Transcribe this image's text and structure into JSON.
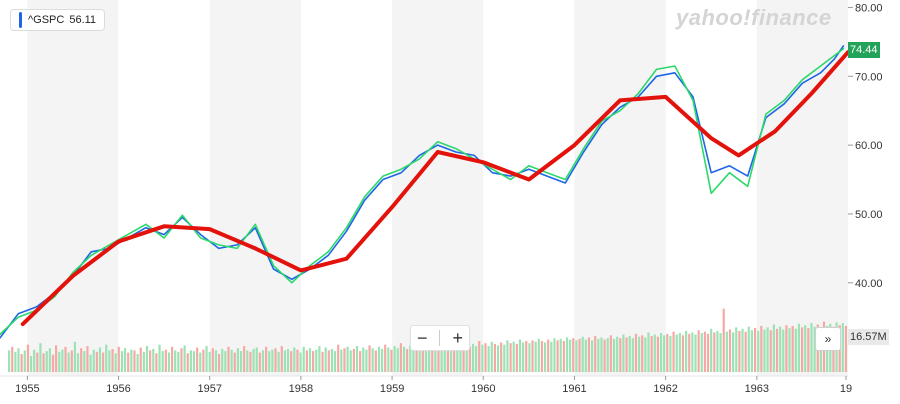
{
  "ticker": {
    "symbol": "^GSPC",
    "value": "56.11"
  },
  "watermark": "yahoo!finance",
  "price_tag": "74.44",
  "volume_tag": "16.57M",
  "zoom": {
    "minus": "−",
    "plus": "+"
  },
  "more_label": "»",
  "colors": {
    "price_line": "#1e66e6",
    "green_line": "#2bd96a",
    "trend_line": "#e3120b",
    "volume_up": "#9be3b4",
    "volume_down": "#f5a9a4",
    "band": "#f4f4f4",
    "price_tag_bg": "#21a35a"
  },
  "chart_data": {
    "type": "line",
    "xlabel": "",
    "ylabel": "",
    "x_ticks": [
      "1955",
      "1956",
      "1957",
      "1958",
      "1959",
      "1960",
      "1961",
      "1962",
      "1963",
      "19"
    ],
    "y_ticks": [
      "80.00",
      "70.00",
      "60.00",
      "50.00",
      "40.00"
    ],
    "ylim": [
      37.5,
      80.5
    ],
    "xlim": [
      1954.7,
      1964.0
    ],
    "grid": false,
    "series": [
      {
        "role": "price",
        "x": [
          1954.7,
          1954.9,
          1955.1,
          1955.3,
          1955.5,
          1955.7,
          1955.9,
          1956.1,
          1956.3,
          1956.5,
          1956.7,
          1956.9,
          1957.1,
          1957.3,
          1957.5,
          1957.7,
          1957.9,
          1958.1,
          1958.3,
          1958.5,
          1958.7,
          1958.9,
          1959.1,
          1959.3,
          1959.5,
          1959.7,
          1959.9,
          1960.1,
          1960.3,
          1960.5,
          1960.7,
          1960.9,
          1961.1,
          1961.3,
          1961.5,
          1961.7,
          1961.9,
          1962.1,
          1962.3,
          1962.5,
          1962.7,
          1962.9,
          1963.1,
          1963.3,
          1963.5,
          1963.7,
          1963.85,
          1963.95
        ],
        "y": [
          32.0,
          35.5,
          36.5,
          38.5,
          41.0,
          44.5,
          45.0,
          46.5,
          48.0,
          47.0,
          49.5,
          47.0,
          45.0,
          45.5,
          48.0,
          42.0,
          40.5,
          42.0,
          44.0,
          47.5,
          52.0,
          55.0,
          56.0,
          58.5,
          60.0,
          59.0,
          58.5,
          56.0,
          55.5,
          56.5,
          55.5,
          54.5,
          59.0,
          63.0,
          65.5,
          67.0,
          70.0,
          70.5,
          67.0,
          56.0,
          57.0,
          55.5,
          64.0,
          66.0,
          69.0,
          70.5,
          72.5,
          74.4
        ]
      },
      {
        "role": "comparison",
        "x": [
          1954.7,
          1954.9,
          1955.1,
          1955.3,
          1955.5,
          1955.7,
          1955.9,
          1956.1,
          1956.3,
          1956.5,
          1956.7,
          1956.9,
          1957.1,
          1957.3,
          1957.5,
          1957.7,
          1957.9,
          1958.1,
          1958.3,
          1958.5,
          1958.7,
          1958.9,
          1959.1,
          1959.3,
          1959.5,
          1959.7,
          1959.9,
          1960.1,
          1960.3,
          1960.5,
          1960.7,
          1960.9,
          1961.1,
          1961.3,
          1961.5,
          1961.7,
          1961.9,
          1962.1,
          1962.3,
          1962.5,
          1962.7,
          1962.9,
          1963.1,
          1963.3,
          1963.5,
          1963.7,
          1963.85,
          1963.95
        ],
        "y": [
          32.5,
          35.0,
          36.0,
          38.0,
          41.5,
          44.0,
          45.5,
          47.0,
          48.5,
          46.5,
          49.8,
          46.5,
          45.5,
          45.0,
          48.5,
          42.5,
          40.0,
          42.5,
          44.5,
          48.0,
          52.5,
          55.5,
          56.5,
          58.0,
          60.5,
          59.5,
          58.0,
          56.5,
          55.0,
          57.0,
          56.0,
          55.0,
          59.5,
          63.5,
          65.0,
          67.5,
          71.0,
          71.5,
          66.5,
          53.0,
          56.0,
          54.0,
          64.5,
          66.5,
          69.5,
          71.5,
          73.0,
          74.0
        ]
      },
      {
        "role": "trend",
        "x": [
          1954.95,
          1955.5,
          1956.0,
          1956.5,
          1957.0,
          1957.5,
          1958.0,
          1958.5,
          1959.0,
          1959.5,
          1960.0,
          1960.5,
          1961.0,
          1961.5,
          1962.0,
          1962.5,
          1962.8,
          1963.2,
          1963.6,
          1964.0
        ],
        "y": [
          34.0,
          41.0,
          46.0,
          48.2,
          47.8,
          45.0,
          41.8,
          43.5,
          51.0,
          59.0,
          57.5,
          55.0,
          60.0,
          66.5,
          67.0,
          61.0,
          58.5,
          62.0,
          67.5,
          73.5
        ]
      }
    ],
    "volume_ylim": [
      0,
      100
    ],
    "volume_values": [
      30,
      35,
      28,
      33,
      25,
      30,
      38,
      22,
      31,
      27,
      40,
      26,
      29,
      33,
      24,
      37,
      28,
      31,
      35,
      27,
      30,
      42,
      26,
      33,
      29,
      36,
      24,
      31,
      28,
      34,
      27,
      38,
      30,
      32,
      26,
      35,
      29,
      33,
      27,
      31,
      30,
      25,
      34,
      28,
      36,
      30,
      32,
      26,
      38,
      29,
      31,
      27,
      35,
      30,
      28,
      33,
      37,
      26,
      30,
      29,
      34,
      27,
      31,
      36,
      28,
      33,
      30,
      25,
      32,
      29,
      35,
      31,
      27,
      33,
      29,
      36,
      30,
      28,
      32,
      34,
      27,
      30,
      35,
      29,
      31,
      33,
      28,
      36,
      30,
      32,
      29,
      34,
      31,
      27,
      35,
      30,
      33,
      29,
      31,
      36,
      28,
      34,
      30,
      32,
      29,
      38,
      31,
      33,
      35,
      30,
      32,
      36,
      29,
      34,
      31,
      37,
      33,
      30,
      35,
      32,
      38,
      34,
      31,
      36,
      33,
      40,
      35,
      32,
      37,
      34,
      36,
      33,
      39,
      35,
      32,
      38,
      34,
      37,
      33,
      36,
      35,
      39,
      34,
      38,
      36,
      41,
      37,
      35,
      39,
      36,
      43,
      38,
      40,
      36,
      42,
      39,
      37,
      41,
      38,
      44,
      40,
      42,
      39,
      45,
      41,
      43,
      40,
      44,
      42,
      46,
      43,
      41,
      45,
      42,
      47,
      44,
      46,
      43,
      48,
      45,
      47,
      44,
      46,
      49,
      45,
      48,
      44,
      50,
      46,
      48,
      45,
      47,
      51,
      46,
      49,
      47,
      52,
      48,
      50,
      47,
      53,
      49,
      51,
      48,
      55,
      50,
      52,
      49,
      54,
      51,
      53,
      50,
      56,
      52,
      54,
      51,
      57,
      53,
      55,
      52,
      58,
      54,
      56,
      53,
      60,
      55,
      57,
      54,
      88,
      56,
      59,
      55,
      62,
      57,
      60,
      56,
      63,
      58,
      61,
      57,
      64,
      59,
      62,
      58,
      66,
      60,
      63,
      59,
      65,
      61,
      64,
      60,
      67,
      62,
      65,
      61,
      68,
      63,
      66,
      62,
      70,
      64,
      67,
      63,
      69,
      65,
      68,
      64
    ],
    "volume_up": [
      true,
      false,
      true,
      true,
      false,
      true,
      false,
      true,
      true,
      false,
      true,
      false,
      true,
      true,
      false,
      false,
      true,
      true,
      false,
      true,
      false,
      true,
      true,
      false,
      true,
      false,
      true,
      true,
      false,
      true,
      false,
      true,
      true,
      false,
      true,
      false,
      true,
      true,
      false,
      true,
      false,
      true,
      false,
      true,
      true,
      false,
      true,
      false,
      true,
      true,
      false,
      true,
      false,
      true,
      true,
      false,
      true,
      false,
      true,
      true,
      false,
      true,
      false,
      true,
      true,
      false,
      true,
      false,
      true,
      true,
      false,
      true,
      false,
      true,
      true,
      false,
      true,
      false,
      true,
      true,
      false,
      true,
      false,
      true,
      true,
      false,
      true,
      false,
      true,
      true,
      false,
      true,
      false,
      true,
      true,
      false,
      true,
      false,
      true,
      true,
      false,
      true,
      false,
      true,
      true,
      false,
      true,
      false,
      true,
      true,
      false,
      true,
      false,
      true,
      true,
      false,
      true,
      false,
      true,
      true,
      false,
      true,
      false,
      true,
      true,
      false,
      true,
      false,
      true,
      true,
      false,
      true,
      false,
      true,
      true,
      false,
      true,
      false,
      true,
      true,
      false,
      true,
      false,
      true,
      true,
      false,
      true,
      false,
      true,
      true,
      false,
      true,
      false,
      true,
      true,
      false,
      true,
      false,
      true,
      true,
      false,
      true,
      false,
      true,
      true,
      false,
      true,
      false,
      true,
      true,
      false,
      true,
      false,
      true,
      true,
      false,
      true,
      false,
      true,
      true,
      false,
      true,
      false,
      true,
      true,
      false,
      true,
      false,
      true,
      true,
      false,
      true,
      false,
      true,
      true,
      false,
      true,
      false,
      true,
      true,
      false,
      true,
      false,
      true,
      true,
      false,
      true,
      false,
      true,
      true,
      false,
      true,
      false,
      true,
      true,
      false,
      true,
      false,
      true,
      true,
      false,
      true,
      false,
      false,
      true,
      false,
      true,
      true,
      false,
      true,
      false,
      true,
      true,
      false,
      true,
      false,
      true,
      true,
      false,
      true,
      false,
      true,
      true,
      false,
      true,
      false,
      true,
      true,
      false,
      true,
      false,
      true,
      true,
      false,
      true,
      false,
      true,
      true,
      false,
      true,
      false,
      true,
      true,
      false,
      true,
      false,
      true
    ]
  }
}
